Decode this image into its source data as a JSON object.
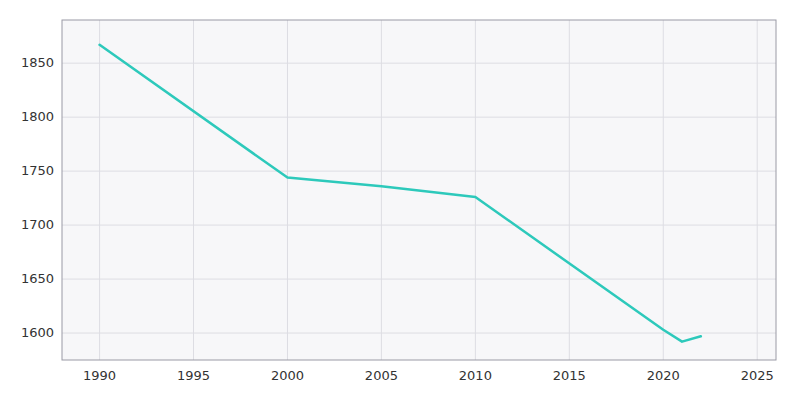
{
  "chart_data": {
    "type": "line",
    "x": [
      1990,
      2000,
      2005,
      2010,
      2020,
      2021,
      2022
    ],
    "values": [
      1867,
      1744,
      1736,
      1726,
      1603,
      1592,
      1597
    ],
    "color": "#2dc9bb",
    "xlim": [
      1988,
      2026
    ],
    "ylim": [
      1575,
      1890
    ],
    "xticks": [
      1990,
      1995,
      2000,
      2005,
      2010,
      2015,
      2020,
      2025
    ],
    "yticks": [
      1600,
      1650,
      1700,
      1750,
      1800,
      1850
    ],
    "grid": true
  }
}
